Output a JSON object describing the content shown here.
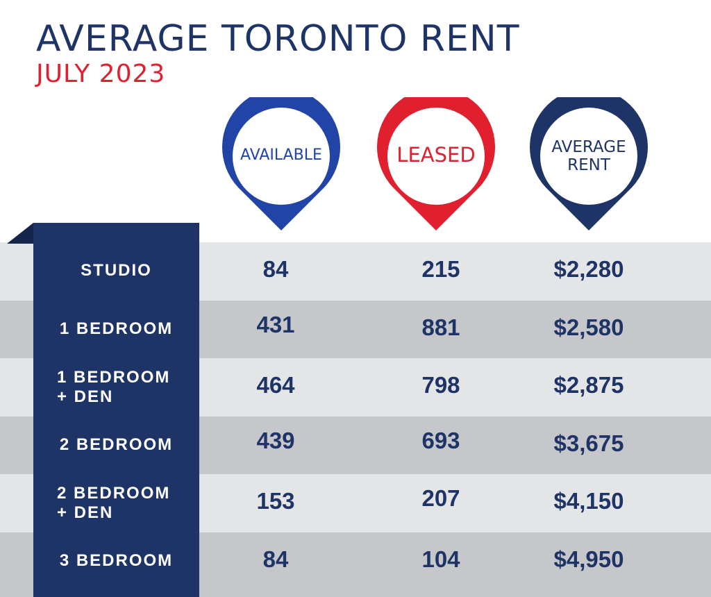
{
  "title": "AVERAGE TORONTO RENT",
  "subtitle": "JULY 2023",
  "colors": {
    "navy": "#1f3466",
    "blue": "#2144a6",
    "red": "#e0202f",
    "band_light": "#e4e5e7",
    "band_dark": "#c6c7ca"
  },
  "chart_data": {
    "type": "table",
    "title": "AVERAGE TORONTO RENT",
    "subtitle": "JULY 2023",
    "columns": [
      {
        "label": "AVAILABLE",
        "color": "#2144a6"
      },
      {
        "label": "LEASED",
        "color": "#e0202f"
      },
      {
        "label": "AVERAGE RENT",
        "color": "#1f3466"
      }
    ],
    "rows": [
      {
        "label": "STUDIO",
        "available": "84",
        "leased": "215",
        "average_rent": "$2,280"
      },
      {
        "label": "1 BEDROOM",
        "available": "431",
        "leased": "881",
        "average_rent": "$2,580"
      },
      {
        "label": "1 BEDROOM + DEN",
        "available": "464",
        "leased": "798",
        "average_rent": "$2,875"
      },
      {
        "label": "2 BEDROOM",
        "available": "439",
        "leased": "693",
        "average_rent": "$3,675"
      },
      {
        "label": "2 BEDROOM + DEN",
        "available": "153",
        "leased": "207",
        "average_rent": "$4,150"
      },
      {
        "label": "3 BEDROOM",
        "available": "84",
        "leased": "104",
        "average_rent": "$4,950"
      }
    ]
  }
}
